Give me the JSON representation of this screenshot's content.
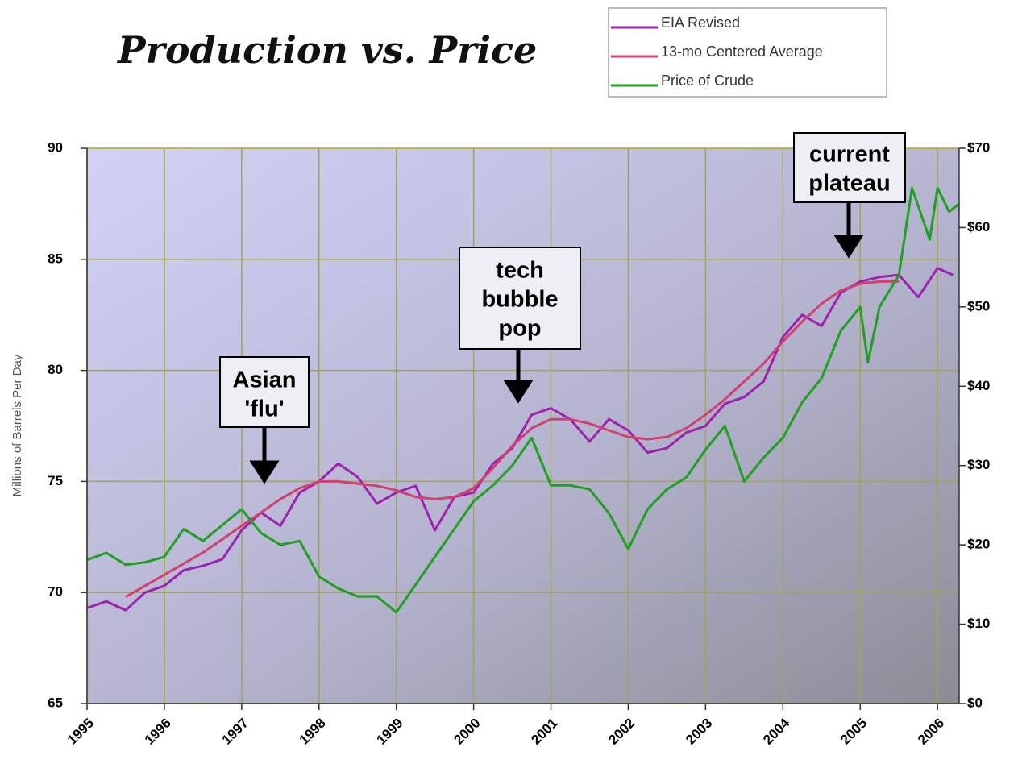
{
  "chart_data": {
    "type": "line",
    "title": "Production vs. Price",
    "y_label": "Millions of Barrels Per Day",
    "xlim": [
      1995,
      2006.28
    ],
    "xticks": [
      1995,
      1996,
      1997,
      1998,
      1999,
      2000,
      2001,
      2002,
      2003,
      2004,
      2005,
      2006
    ],
    "ylim": [
      65,
      90
    ],
    "yticks": [
      65,
      70,
      75,
      80,
      85,
      90
    ],
    "y2lim": [
      0,
      70
    ],
    "y2ticks": [
      {
        "value": 0,
        "label": "$0"
      },
      {
        "value": 10,
        "label": "$10"
      },
      {
        "value": 20,
        "label": "$20"
      },
      {
        "value": 30,
        "label": "$30"
      },
      {
        "value": 40,
        "label": "$40"
      },
      {
        "value": 50,
        "label": "$50"
      },
      {
        "value": 60,
        "label": "$60"
      },
      {
        "value": 70,
        "label": "$70"
      }
    ],
    "grid": true,
    "legend": "top-right",
    "series": [
      {
        "name": "EIA Revised",
        "color": "#a020b0",
        "x": [
          1995,
          1995.25,
          1995.5,
          1995.75,
          1996,
          1996.25,
          1996.5,
          1996.75,
          1997,
          1997.25,
          1997.5,
          1997.75,
          1998,
          1998.25,
          1998.5,
          1998.75,
          1999,
          1999.25,
          1999.5,
          1999.75,
          2000,
          2000.25,
          2000.5,
          2000.75,
          2001,
          2001.25,
          2001.5,
          2001.75,
          2002,
          2002.25,
          2002.5,
          2002.75,
          2003,
          2003.25,
          2003.5,
          2003.75,
          2004,
          2004.25,
          2004.5,
          2004.75,
          2005,
          2005.25,
          2005.5,
          2005.75,
          2006,
          2006.2
        ],
        "values": [
          69.3,
          69.6,
          69.2,
          70.0,
          70.3,
          71.0,
          71.2,
          71.5,
          72.8,
          73.6,
          73.0,
          74.5,
          75.0,
          75.8,
          75.2,
          74.0,
          74.5,
          74.8,
          72.8,
          74.3,
          74.5,
          75.8,
          76.5,
          78.0,
          78.3,
          77.8,
          76.8,
          77.8,
          77.3,
          76.3,
          76.5,
          77.2,
          77.5,
          78.5,
          78.8,
          79.5,
          81.5,
          82.5,
          82.0,
          83.5,
          84.0,
          84.2,
          84.3,
          83.3,
          84.6,
          84.3
        ]
      },
      {
        "name": "13-mo Centered Average",
        "color": "#d04070",
        "x": [
          1995.5,
          1995.75,
          1996,
          1996.25,
          1996.5,
          1996.75,
          1997,
          1997.25,
          1997.5,
          1997.75,
          1998,
          1998.25,
          1998.5,
          1998.75,
          1999,
          1999.25,
          1999.5,
          1999.75,
          2000,
          2000.25,
          2000.5,
          2000.75,
          2001,
          2001.25,
          2001.5,
          2001.75,
          2002,
          2002.25,
          2002.5,
          2002.75,
          2003,
          2003.25,
          2003.5,
          2003.75,
          2004,
          2004.25,
          2004.5,
          2004.75,
          2005,
          2005.25,
          2005.5
        ],
        "values": [
          69.8,
          70.3,
          70.8,
          71.3,
          71.8,
          72.4,
          73.0,
          73.6,
          74.2,
          74.7,
          75.0,
          75.0,
          74.9,
          74.8,
          74.6,
          74.3,
          74.2,
          74.3,
          74.7,
          75.6,
          76.6,
          77.4,
          77.8,
          77.8,
          77.6,
          77.3,
          77.0,
          76.9,
          77.0,
          77.4,
          78.0,
          78.7,
          79.5,
          80.3,
          81.3,
          82.2,
          83.0,
          83.6,
          83.9,
          84.0,
          84.0
        ]
      },
      {
        "name": "Price of Crude",
        "color": "#20a020",
        "axis": "y2",
        "x": [
          1995,
          1995.25,
          1995.5,
          1995.75,
          1996,
          1996.25,
          1996.5,
          1996.75,
          1997,
          1997.25,
          1997.5,
          1997.75,
          1998,
          1998.25,
          1998.5,
          1998.75,
          1999,
          1999.25,
          1999.5,
          1999.75,
          2000,
          2000.25,
          2000.5,
          2000.75,
          2001,
          2001.25,
          2001.5,
          2001.75,
          2002,
          2002.25,
          2002.5,
          2002.75,
          2003,
          2003.25,
          2003.5,
          2003.75,
          2004,
          2004.25,
          2004.5,
          2004.75,
          2005,
          2005.1,
          2005.25,
          2005.5,
          2005.67,
          2005.9,
          2006,
          2006.15,
          2006.28
        ],
        "values": [
          18.1,
          19,
          17.5,
          17.8,
          18.5,
          22,
          20.5,
          22.5,
          24.5,
          21.5,
          20,
          20.5,
          16,
          14.5,
          13.5,
          13.5,
          11.5,
          15,
          18.5,
          22,
          25.5,
          27.5,
          30,
          33.5,
          27.5,
          27.5,
          27,
          24,
          19.5,
          24.5,
          27,
          28.5,
          32,
          35,
          28,
          31,
          33.5,
          38,
          41,
          47,
          50,
          43,
          50,
          54,
          65,
          58.5,
          65,
          62,
          63
        ]
      }
    ],
    "annotations": [
      {
        "lines": [
          "Asian",
          "'flu'"
        ]
      },
      {
        "lines": [
          "tech",
          "bubble",
          "pop"
        ]
      },
      {
        "lines": [
          "current",
          "plateau"
        ]
      }
    ]
  }
}
